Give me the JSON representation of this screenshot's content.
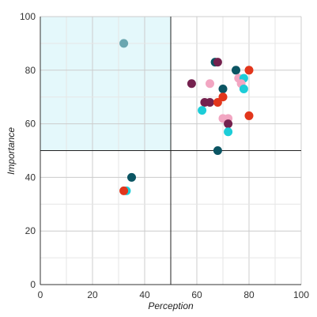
{
  "chart_data": {
    "type": "scatter",
    "title": "",
    "xlabel": "Perception",
    "ylabel": "Importance",
    "xlim": [
      0,
      100
    ],
    "ylim": [
      0,
      100
    ],
    "x_ticks": [
      "0",
      "20",
      "40",
      "60",
      "80",
      "100"
    ],
    "y_ticks": [
      "0",
      "20",
      "40",
      "60",
      "80",
      "100"
    ],
    "grid": true,
    "reference_lines": {
      "x": 50,
      "y": 50
    },
    "highlight_region": {
      "x": [
        0,
        50
      ],
      "y": [
        50,
        100
      ],
      "color": "#e4f8fb"
    },
    "colors": {
      "teal_gray": "#6aa6b0",
      "dark_teal": "#0b5563",
      "maroon": "#74214e",
      "red": "#e2361c",
      "cyan": "#1ccdd8",
      "pink": "#f2a6c2",
      "grid": "#cccccc",
      "reference_line": "#222222"
    },
    "points": [
      {
        "x": 32,
        "y": 90,
        "color": "#6aa6b0"
      },
      {
        "x": 67,
        "y": 83,
        "color": "#0b5563"
      },
      {
        "x": 68,
        "y": 83,
        "color": "#74214e"
      },
      {
        "x": 75,
        "y": 80,
        "color": "#0b5563"
      },
      {
        "x": 80,
        "y": 80,
        "color": "#e2361c"
      },
      {
        "x": 58,
        "y": 75,
        "color": "#74214e"
      },
      {
        "x": 65,
        "y": 75,
        "color": "#f2a6c2"
      },
      {
        "x": 76,
        "y": 77,
        "color": "#f2a6c2"
      },
      {
        "x": 78,
        "y": 77,
        "color": "#1ccdd8"
      },
      {
        "x": 77,
        "y": 75,
        "color": "#f2a6c2"
      },
      {
        "x": 70,
        "y": 73,
        "color": "#0b5563"
      },
      {
        "x": 78,
        "y": 73,
        "color": "#1ccdd8"
      },
      {
        "x": 70,
        "y": 70,
        "color": "#e2361c"
      },
      {
        "x": 63,
        "y": 68,
        "color": "#74214e"
      },
      {
        "x": 65,
        "y": 68,
        "color": "#74214e"
      },
      {
        "x": 68,
        "y": 68,
        "color": "#e2361c"
      },
      {
        "x": 62,
        "y": 65,
        "color": "#1ccdd8"
      },
      {
        "x": 70,
        "y": 62,
        "color": "#f2a6c2"
      },
      {
        "x": 72,
        "y": 62,
        "color": "#f2a6c2"
      },
      {
        "x": 72,
        "y": 60,
        "color": "#74214e"
      },
      {
        "x": 80,
        "y": 63,
        "color": "#e2361c"
      },
      {
        "x": 72,
        "y": 57,
        "color": "#1ccdd8"
      },
      {
        "x": 68,
        "y": 50,
        "color": "#0b5563"
      },
      {
        "x": 35,
        "y": 40,
        "color": "#0b5563"
      },
      {
        "x": 33,
        "y": 35,
        "color": "#1ccdd8"
      },
      {
        "x": 32,
        "y": 35,
        "color": "#e2361c"
      }
    ]
  }
}
